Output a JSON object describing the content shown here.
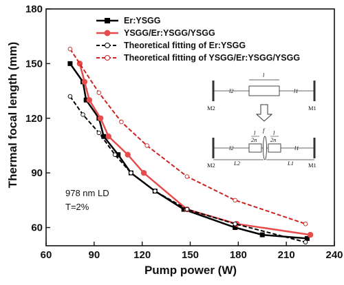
{
  "chart_data": {
    "type": "line",
    "xlabel": "Pump power (W)",
    "ylabel": "Thermal focal length (mm)",
    "xlim": [
      60,
      240
    ],
    "ylim": [
      50,
      180
    ],
    "xticks": [
      "60",
      "90",
      "120",
      "150",
      "180",
      "210",
      "240"
    ],
    "yticks": [
      "60",
      "90",
      "120",
      "150",
      "180"
    ],
    "legend_position": "top-right",
    "series": [
      {
        "name": "Er:YSGG",
        "style": "solid",
        "marker": "square",
        "color": "#000000",
        "x": [
          75,
          83,
          85,
          93,
          96,
          105,
          113,
          128,
          146,
          178,
          195,
          223
        ],
        "y": [
          150,
          140,
          130,
          120,
          110,
          100,
          90,
          80,
          70,
          60,
          56,
          54
        ]
      },
      {
        "name": "YSGG/Er:YSGG/YSGG",
        "style": "solid",
        "marker": "circle",
        "color": "#e74c4c",
        "x": [
          81,
          84,
          87,
          94,
          99,
          111,
          121,
          148,
          179,
          225
        ],
        "y": [
          150,
          140,
          130,
          120,
          110,
          100,
          90,
          70,
          62,
          56
        ]
      },
      {
        "name": "Theoretical fitting of Er:YSGG",
        "style": "dashed",
        "marker": "open-circle",
        "color": "#000000",
        "x": [
          75,
          83,
          93,
          103,
          113,
          128,
          148,
          178,
          222
        ],
        "y": [
          132,
          122,
          112,
          100,
          90,
          80,
          70,
          62,
          52
        ]
      },
      {
        "name": "Theoretical fitting of YSGG/Er:YSGG/YSGG",
        "style": "dashed",
        "marker": "open-circle",
        "color": "#cc2222",
        "x": [
          75,
          93,
          107,
          123,
          148,
          178,
          222
        ],
        "y": [
          158,
          134,
          118,
          105,
          88,
          75,
          62
        ]
      }
    ],
    "annotations": [
      "978 nm LD",
      "T=2%"
    ]
  },
  "diagram": {
    "top": {
      "mirror_left": "M2",
      "mirror_right": "M1",
      "crystal": "l",
      "gap_left": "l2",
      "gap_right": "l1"
    },
    "bottom": {
      "mirror_left": "M2",
      "mirror_right": "M1",
      "lens": "f",
      "half_left": "l",
      "half_left_den": "2n",
      "half_right": "l",
      "half_right_den": "2n",
      "gap_left": "l2",
      "gap_right": "l1",
      "len_left": "L2",
      "len_right": "L1"
    }
  }
}
